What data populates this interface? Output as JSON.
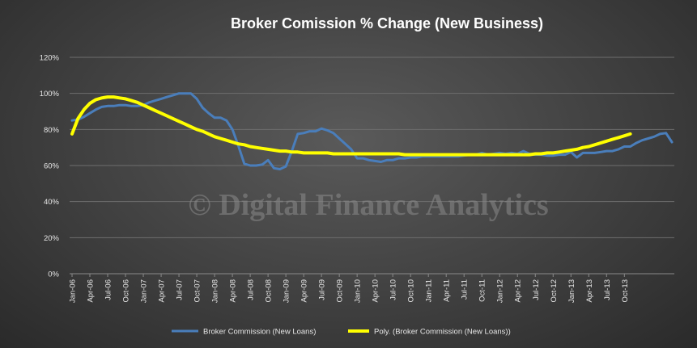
{
  "chart_data": {
    "type": "line",
    "title": "Broker Comission  % Change (New Business)",
    "watermark": "© Digital Finance Analytics",
    "xlabel": "",
    "ylabel": "",
    "ylim": [
      0,
      120
    ],
    "y_ticks": [
      "0%",
      "20%",
      "40%",
      "60%",
      "80%",
      "100%",
      "120%"
    ],
    "x_tick_labels": [
      "Jan-06",
      "Apr-06",
      "Jul-06",
      "Oct-06",
      "Jan-07",
      "Apr-07",
      "Jul-07",
      "Oct-07",
      "Jan-08",
      "Apr-08",
      "Jul-08",
      "Oct-08",
      "Jan-09",
      "Apr-09",
      "Jul-09",
      "Oct-09",
      "Jan-10",
      "Apr-10",
      "Jul-10",
      "Oct-10",
      "Jan-11",
      "Apr-11",
      "Jul-11",
      "Oct-11",
      "Jan-12",
      "Apr-12",
      "Jul-12",
      "Oct-12",
      "Jan-13",
      "Apr-13",
      "Jul-13",
      "Oct-13"
    ],
    "grid": true,
    "legend_position": "bottom",
    "series": [
      {
        "name": "Broker Commission (New Loans)",
        "color": "#4a7ebb",
        "values": [
          85,
          85.5,
          87,
          89,
          91,
          92.5,
          93,
          93,
          93.5,
          93.5,
          93,
          93,
          93.5,
          95,
          96,
          97,
          98,
          99,
          100,
          100,
          100,
          97,
          92,
          89,
          86.5,
          86.5,
          85,
          80,
          71,
          61,
          60,
          60,
          60.5,
          63,
          58.5,
          58,
          59.5,
          68,
          77.5,
          78,
          79,
          79,
          80.5,
          79.5,
          78,
          75,
          72,
          69,
          64,
          64,
          63,
          62.5,
          62,
          63,
          63,
          64,
          64,
          64.5,
          64.5,
          65,
          65,
          65,
          65,
          65,
          65,
          65,
          65.5,
          66,
          66,
          67,
          66,
          66.5,
          67,
          66.5,
          67,
          66.5,
          68,
          66.5,
          66,
          66,
          65.5,
          65.5,
          66,
          66,
          67.5,
          64.5,
          67,
          67,
          67,
          67.5,
          68,
          68,
          69,
          70.5,
          70.5,
          72.5,
          74,
          75,
          76,
          77.5,
          78,
          73
        ]
      },
      {
        "name": "Poly. (Broker Commission (New Loans))",
        "color": "#ffff00",
        "values": [
          77.5,
          86,
          91,
          94.5,
          96.5,
          97.5,
          98,
          98,
          97.5,
          97,
          96,
          95,
          93.5,
          92,
          90.5,
          89,
          87.5,
          86,
          84.5,
          83,
          81.5,
          80,
          79,
          77.5,
          76,
          75,
          74,
          73,
          72,
          71.5,
          70.5,
          70,
          69.5,
          69,
          68.5,
          68,
          68,
          67.5,
          67.5,
          67,
          67,
          67,
          67,
          67,
          66.5,
          66.5,
          66.5,
          66.5,
          66.5,
          66.5,
          66.5,
          66.5,
          66.5,
          66.5,
          66.5,
          66.5,
          66,
          66,
          66,
          66,
          66,
          66,
          66,
          66,
          66,
          66,
          66,
          66,
          66,
          66,
          66,
          66,
          66,
          66,
          66,
          66,
          66,
          66,
          66.5,
          66.5,
          67,
          67,
          67.5,
          68,
          68.5,
          69,
          70,
          70.5,
          71.5,
          72.5,
          73.5,
          74.5,
          75.5,
          76.5,
          77.5
        ]
      }
    ]
  }
}
